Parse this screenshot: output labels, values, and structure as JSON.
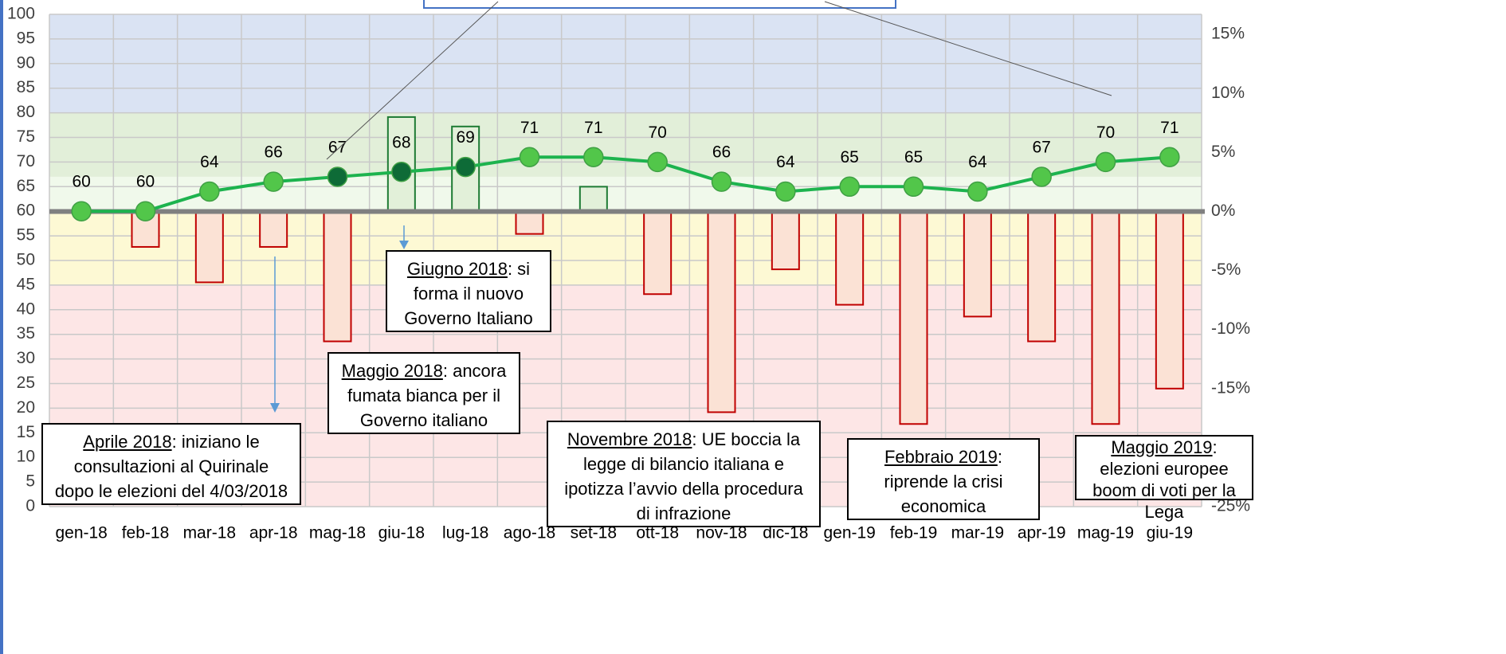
{
  "chart_data": {
    "type": "bar-line",
    "categories": [
      "gen-18",
      "feb-18",
      "mar-18",
      "apr-18",
      "mag-18",
      "giu-18",
      "lug-18",
      "ago-18",
      "set-18",
      "ott-18",
      "nov-18",
      "dic-18",
      "gen-19",
      "feb-19",
      "mar-19",
      "apr-19",
      "mag-19",
      "giu-19"
    ],
    "series": [
      {
        "type": "bar",
        "axis": "y2",
        "values": [
          null,
          -3,
          -6,
          -3,
          -11,
          8,
          7.2,
          -1.9,
          2.1,
          -7,
          -17,
          -4.9,
          -7.9,
          -18,
          -8.9,
          -11,
          -18,
          -15
        ],
        "colors": {
          "positive": "#e2f0d9",
          "negative": "#fbe2d5"
        },
        "edge_colors": {
          "positive": "#1e7b34",
          "negative": "#c00000"
        }
      },
      {
        "type": "line",
        "axis": "y",
        "color": "#1db34e",
        "values": [
          60,
          60,
          64,
          66,
          67,
          68,
          69,
          71,
          71,
          70,
          66,
          64,
          65,
          65,
          64,
          67,
          70,
          71
        ],
        "point_colors": [
          "#52c64a",
          "#52c64a",
          "#52c64a",
          "#52c64a",
          "#0e6b37",
          "#0e6b37",
          "#0e6b37",
          "#52c64a",
          "#52c64a",
          "#52c64a",
          "#52c64a",
          "#52c64a",
          "#52c64a",
          "#52c64a",
          "#52c64a",
          "#52c64a",
          "#52c64a",
          "#52c64a"
        ]
      }
    ],
    "ylim": [
      0,
      100
    ],
    "yticks": [
      0,
      5,
      10,
      15,
      20,
      25,
      30,
      35,
      40,
      45,
      50,
      55,
      60,
      65,
      70,
      75,
      80,
      85,
      90,
      95,
      100
    ],
    "y2lim": [
      -25,
      16.7
    ],
    "y2ticks": [
      {
        "value": 15,
        "label": "15%"
      },
      {
        "value": 10,
        "label": "10%"
      },
      {
        "value": 5,
        "label": "5%"
      },
      {
        "value": 0,
        "label": "0%"
      },
      {
        "value": -5,
        "label": "-5%"
      },
      {
        "value": -10,
        "label": "-10%"
      },
      {
        "value": -15,
        "label": "-15%"
      },
      {
        "value": -20,
        "label": "-20%"
      },
      {
        "value": -25,
        "label": "-25%"
      }
    ],
    "grid": true,
    "bands": [
      {
        "from": 80,
        "to": 100,
        "color": "#dae3f3"
      },
      {
        "from": 67,
        "to": 80,
        "color": "#e2efd9"
      },
      {
        "from": 60,
        "to": 67,
        "color": "#f0f9eb"
      },
      {
        "from": 45,
        "to": 60,
        "color": "#fdf9d4"
      },
      {
        "from": 0,
        "to": 45,
        "color": "#fde6e6"
      }
    ],
    "annotations": [
      {
        "heading": "Giugno 2018",
        "lines": [
          ": si",
          "forma il nuovo",
          "Governo Italiano"
        ]
      },
      {
        "heading": "Maggio 2018",
        "lines": [
          ": ancora",
          "fumata bianca per il",
          "Governo italiano"
        ]
      },
      {
        "heading": "Aprile 2018",
        "lines": [
          ": iniziano le",
          "consultazioni al Quirinale",
          "dopo le elezioni del 4/03/2018"
        ]
      },
      {
        "heading": "Novembre 2018",
        "lines": [
          ": UE boccia la",
          "legge di bilancio italiana e",
          "ipotizza l’avvio della procedura",
          "di infrazione"
        ]
      },
      {
        "heading": "Febbraio 2019",
        "lines": [
          ":",
          "riprende la crisi",
          "economica"
        ]
      },
      {
        "heading": "Maggio 2019",
        "lines": [
          ":",
          "elezioni europee",
          "boom di voti per la",
          "Lega"
        ]
      }
    ]
  }
}
